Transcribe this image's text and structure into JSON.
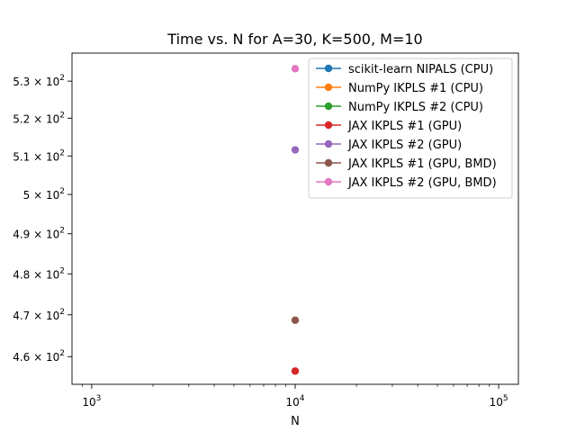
{
  "chart_data": {
    "type": "scatter",
    "title": "Time vs. N for A=30, K=500, M=10",
    "xlabel": "N",
    "ylabel": "",
    "xscale": "log",
    "yscale": "log",
    "xlim": [
      800,
      125000
    ],
    "ylim": [
      453.5,
      537.7
    ],
    "grid": false,
    "legend_position": "top-right",
    "x_ticks": [
      {
        "value": 1000,
        "base": "10",
        "exp": "3"
      },
      {
        "value": 10000,
        "base": "10",
        "exp": "4"
      },
      {
        "value": 100000,
        "base": "10",
        "exp": "5"
      }
    ],
    "y_ticks": [
      {
        "value": 460,
        "mant": "4.6",
        "exp": "2"
      },
      {
        "value": 470,
        "mant": "4.7",
        "exp": "2"
      },
      {
        "value": 480,
        "mant": "4.8",
        "exp": "2"
      },
      {
        "value": 490,
        "mant": "4.9",
        "exp": "2"
      },
      {
        "value": 500,
        "mant": "5",
        "exp": "2"
      },
      {
        "value": 510,
        "mant": "5.1",
        "exp": "2"
      },
      {
        "value": 520,
        "mant": "5.2",
        "exp": "2"
      },
      {
        "value": 530,
        "mant": "5.3",
        "exp": "2"
      }
    ],
    "series": [
      {
        "name": "scikit-learn NIPALS (CPU)",
        "color": "#1f77b4",
        "points": []
      },
      {
        "name": "NumPy IKPLS #1 (CPU)",
        "color": "#ff7f0e",
        "points": []
      },
      {
        "name": "NumPy IKPLS #2 (CPU)",
        "color": "#2ca02c",
        "points": []
      },
      {
        "name": "JAX IKPLS #1 (GPU)",
        "color": "#d62728",
        "points": [
          {
            "x": 10000,
            "y": 456.6
          }
        ]
      },
      {
        "name": "JAX IKPLS #2 (GPU)",
        "color": "#9467bd",
        "points": [
          {
            "x": 10000,
            "y": 511.6
          }
        ]
      },
      {
        "name": "JAX IKPLS #1 (GPU, BMD)",
        "color": "#8c564b",
        "points": [
          {
            "x": 10000,
            "y": 468.7
          }
        ]
      },
      {
        "name": "JAX IKPLS #2 (GPU, BMD)",
        "color": "#e377c2",
        "points": [
          {
            "x": 10000,
            "y": 533.4
          }
        ]
      }
    ]
  }
}
